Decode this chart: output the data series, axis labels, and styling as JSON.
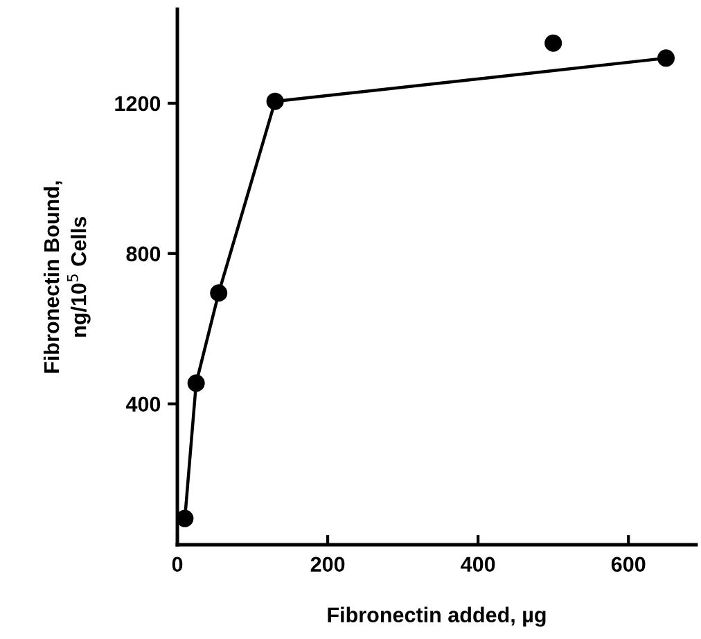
{
  "chart_data": {
    "type": "line",
    "xlabel": "Fibronectin added, µg",
    "ylabel": "Fibronectin Bound,\nng/10$^{5}$ Cells",
    "xlim": [
      0,
      690
    ],
    "ylim": [
      25,
      1450
    ],
    "xticks": [
      0,
      200,
      400,
      600
    ],
    "yticks": [
      400,
      800,
      1200
    ],
    "grid": false,
    "legend": false,
    "series": [
      {
        "color": "#000000",
        "marker": "circle",
        "x": [
          10,
          25,
          55,
          130,
          650
        ],
        "values": [
          95,
          455,
          695,
          1205,
          1320
        ]
      },
      {
        "type": "scatter",
        "color": "#000000",
        "marker": "circle",
        "x": [
          500
        ],
        "values": [
          1360
        ]
      }
    ]
  }
}
